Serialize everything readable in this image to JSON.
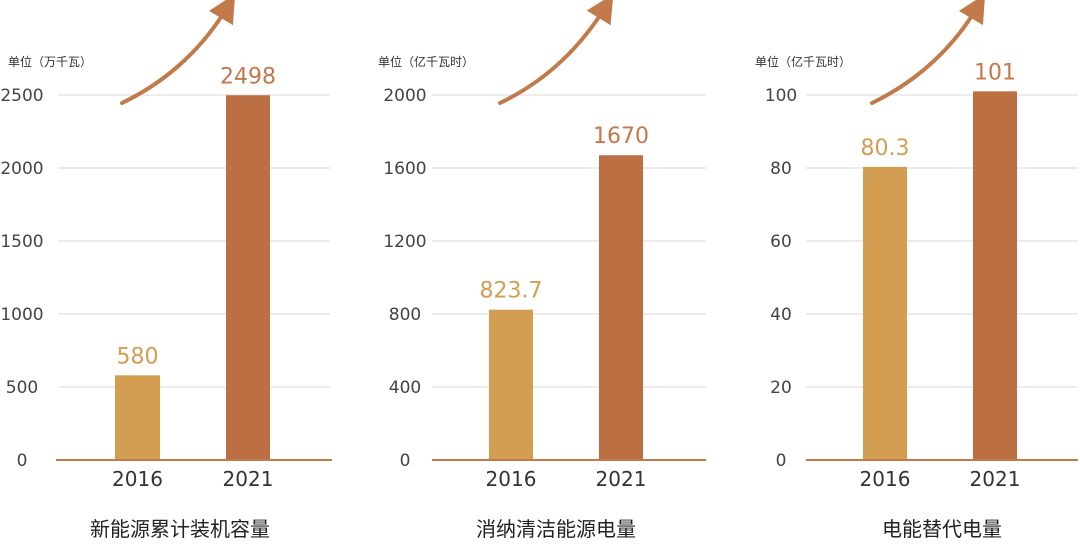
{
  "colors": {
    "bar_2016": "#D39D52",
    "bar_2021": "#BB6F42",
    "label_2016": "#D39D52",
    "label_2021": "#C2784A",
    "arrow": "#C27A4A",
    "grid": "#D8D8D8",
    "baseline": "#C27A4A",
    "axis_text": "#444444",
    "title_text": "#222222"
  },
  "chart_data": [
    {
      "type": "bar",
      "unit_label": "单位（万千瓦）",
      "title": "新能源累计装机容量",
      "categories": [
        "2016",
        "2021"
      ],
      "values": [
        580,
        2498
      ],
      "value_labels": [
        "580",
        "2498"
      ],
      "yticks": [
        0,
        500,
        1000,
        1500,
        2000,
        2500
      ],
      "ylim": [
        0,
        2500
      ],
      "grid": true,
      "trend_arrow": true
    },
    {
      "type": "bar",
      "unit_label": "单位（亿千瓦时）",
      "title": "消纳清洁能源电量",
      "categories": [
        "2016",
        "2021"
      ],
      "values": [
        823.7,
        1670
      ],
      "value_labels": [
        "823.7",
        "1670"
      ],
      "yticks": [
        0,
        400,
        800,
        1200,
        1600,
        2000
      ],
      "ylim": [
        0,
        2000
      ],
      "grid": true,
      "trend_arrow": true
    },
    {
      "type": "bar",
      "unit_label": "单位（亿千瓦时）",
      "title": "电能替代电量",
      "categories": [
        "2016",
        "2021"
      ],
      "values": [
        80.3,
        101
      ],
      "value_labels": [
        "80.3",
        "101"
      ],
      "yticks": [
        0,
        20,
        40,
        60,
        80,
        100
      ],
      "ylim": [
        0,
        100
      ],
      "grid": true,
      "trend_arrow": true
    }
  ]
}
